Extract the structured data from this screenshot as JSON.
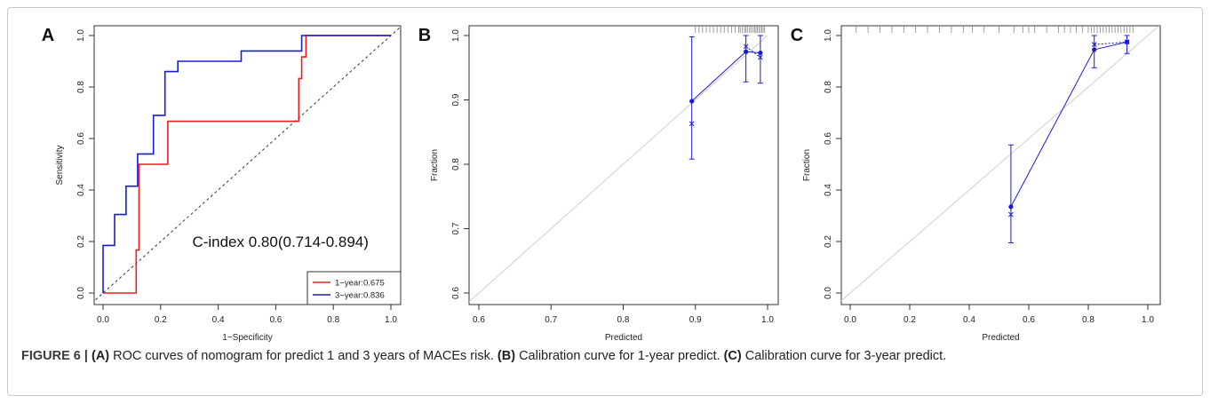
{
  "caption": {
    "label": "FIGURE 6 |",
    "a_tag": "(A)",
    "a_text": " ROC curves of nomogram for predict 1 and 3 years of MACEs risk. ",
    "b_tag": "(B)",
    "b_text": " Calibration curve for 1-year predict. ",
    "c_tag": "(C)",
    "c_text": " Calibration curve for 3-year predict."
  },
  "chart_data": [
    {
      "panel": "A",
      "type": "line",
      "xlabel": "1−Specificity",
      "ylabel": "Sensitivity",
      "xlim": [
        0,
        1
      ],
      "ylim": [
        0,
        1
      ],
      "xticks": [
        "0.0",
        "0.2",
        "0.4",
        "0.6",
        "0.8",
        "1.0"
      ],
      "yticks": [
        "0.0",
        "0.2",
        "0.4",
        "0.6",
        "0.8",
        "1.0"
      ],
      "annotation": "C-index 0.80(0.714-0.894)",
      "legend_position": "bottom-right",
      "reference_line": "diagonal, dashed",
      "series": [
        {
          "name": "1−year:0.675",
          "color": "#e8201c",
          "x": [
            0.0,
            0.115,
            0.115,
            0.125,
            0.125,
            0.225,
            0.225,
            0.68,
            0.68,
            0.69,
            0.69,
            0.705,
            0.705,
            1.0
          ],
          "y": [
            0.0,
            0.0,
            0.167,
            0.167,
            0.5,
            0.5,
            0.667,
            0.667,
            0.833,
            0.833,
            0.917,
            0.917,
            1.0,
            1.0
          ]
        },
        {
          "name": "3−year:0.836",
          "color": "#1a1ad4",
          "x": [
            0.0,
            0.0,
            0.04,
            0.04,
            0.08,
            0.08,
            0.12,
            0.12,
            0.175,
            0.175,
            0.215,
            0.215,
            0.26,
            0.26,
            0.48,
            0.48,
            0.69,
            0.69,
            1.0
          ],
          "y": [
            0.0,
            0.185,
            0.185,
            0.305,
            0.305,
            0.415,
            0.415,
            0.54,
            0.54,
            0.69,
            0.69,
            0.86,
            0.86,
            0.9,
            0.9,
            0.94,
            0.94,
            1.0,
            1.0
          ]
        }
      ]
    },
    {
      "panel": "B",
      "type": "line",
      "xlabel": "Predicted",
      "ylabel": "Fraction",
      "xlim": [
        0.58,
        1.0
      ],
      "ylim": [
        0.58,
        1.0
      ],
      "xticks": [
        "0.6",
        "0.7",
        "0.8",
        "0.9",
        "1.0"
      ],
      "yticks": [
        "0.6",
        "0.7",
        "0.8",
        "0.9",
        "1.0"
      ],
      "reference_line": "diagonal, light gray",
      "series": [
        {
          "name": "",
          "color": "#1a1ad4",
          "x": [
            0.895,
            0.97,
            0.99
          ],
          "y": [
            0.898,
            0.975,
            0.973
          ],
          "lower": [
            0.808,
            0.928,
            0.926
          ],
          "upper": [
            0.998,
            1.0,
            1.0
          ],
          "bias_corrected_y": [
            0.863,
            0.983,
            0.966
          ]
        }
      ],
      "rug": [
        0.9,
        0.905,
        0.91,
        0.915,
        0.92,
        0.925,
        0.93,
        0.935,
        0.94,
        0.945,
        0.95,
        0.955,
        0.96,
        0.962,
        0.965,
        0.968,
        0.97,
        0.972,
        0.975,
        0.977,
        0.98,
        0.982,
        0.984,
        0.986,
        0.988,
        0.99,
        0.992,
        0.994,
        0.996
      ]
    },
    {
      "panel": "C",
      "type": "line",
      "xlabel": "Predicted",
      "ylabel": "Fraction",
      "xlim": [
        -0.04,
        1.04
      ],
      "ylim": [
        -0.04,
        1.04
      ],
      "xticks": [
        "0.0",
        "0.2",
        "0.4",
        "0.6",
        "0.8",
        "1.0"
      ],
      "yticks": [
        "0.0",
        "0.2",
        "0.4",
        "0.6",
        "0.8",
        "1.0"
      ],
      "reference_line": "diagonal, light gray",
      "series": [
        {
          "name": "",
          "color": "#1a1ad4",
          "x": [
            0.54,
            0.82,
            0.93
          ],
          "y": [
            0.335,
            0.945,
            0.975
          ],
          "lower": [
            0.195,
            0.875,
            0.93
          ],
          "upper": [
            0.575,
            1.0,
            1.0
          ],
          "bias_corrected_y": [
            0.305,
            0.965,
            0.975
          ]
        }
      ],
      "rug": [
        0.02,
        0.06,
        0.1,
        0.14,
        0.18,
        0.22,
        0.26,
        0.3,
        0.34,
        0.38,
        0.41,
        0.45,
        0.5,
        0.55,
        0.58,
        0.6,
        0.62,
        0.66,
        0.7,
        0.72,
        0.74,
        0.76,
        0.78,
        0.8,
        0.81,
        0.82,
        0.83,
        0.84,
        0.85,
        0.86,
        0.87,
        0.88,
        0.89,
        0.9,
        0.91,
        0.92,
        0.93,
        0.94,
        0.95
      ]
    }
  ]
}
